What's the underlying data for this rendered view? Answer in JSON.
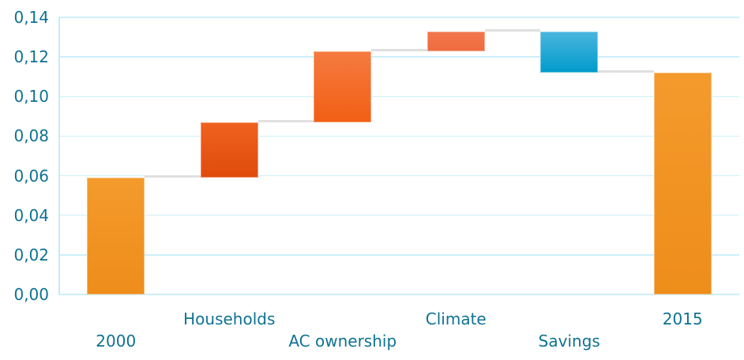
{
  "chart_data": {
    "type": "waterfall",
    "title": "",
    "legend": "none",
    "grid": true,
    "categories": [
      "2000",
      "Households",
      "AC ownership",
      "Climate",
      "Savings",
      "2015"
    ],
    "bars": [
      {
        "label": "2000",
        "start": 0,
        "end": 0.059,
        "role": "total",
        "color_top": "#F49A2D",
        "color_bottom": "#EE8D1A"
      },
      {
        "label": "Households",
        "start": 0.059,
        "end": 0.087,
        "role": "increase",
        "color_top": "#F0611F",
        "color_bottom": "#DF4C0C"
      },
      {
        "label": "AC ownership",
        "start": 0.087,
        "end": 0.123,
        "role": "increase",
        "color_top": "#F57A40",
        "color_bottom": "#F25F14"
      },
      {
        "label": "Climate",
        "start": 0.123,
        "end": 0.133,
        "role": "increase",
        "color_top": "#F3764E",
        "color_bottom": "#F06B3E"
      },
      {
        "label": "Savings",
        "start": 0.133,
        "end": 0.112,
        "role": "decrease",
        "color_top": "#4AB5DE",
        "color_bottom": "#009BCB"
      },
      {
        "label": "2015",
        "start": 0,
        "end": 0.112,
        "role": "total",
        "color_top": "#F49A2D",
        "color_bottom": "#EE8D1A"
      }
    ],
    "y_axis": {
      "min": 0,
      "max": 0.14,
      "ticks": [
        {
          "label": "0,00",
          "value": 0.0
        },
        {
          "label": "0,02",
          "value": 0.02
        },
        {
          "label": "0,04",
          "value": 0.04
        },
        {
          "label": "0,06",
          "value": 0.06
        },
        {
          "label": "0,08",
          "value": 0.08
        },
        {
          "label": "0,10",
          "value": 0.1
        },
        {
          "label": "0,12",
          "value": 0.12
        },
        {
          "label": "0,14",
          "value": 0.14
        }
      ]
    },
    "x_axis": {
      "labels_staggered": true
    },
    "colors": {
      "gridline": "#CDEFF9",
      "axis_line": "#C9EAF6",
      "connector": "#E0E0E0",
      "label_text": "#0F7293",
      "background": "#FFFFFF"
    }
  }
}
